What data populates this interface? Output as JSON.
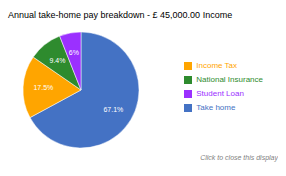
{
  "chart_data": {
    "type": "pie",
    "title": "Annual take-home pay breakdown - £ 45,000.00 Income",
    "categories": [
      "Take home",
      "Income Tax",
      "National Insurance",
      "Student Loan"
    ],
    "values": [
      67.1,
      17.5,
      9.4,
      6.0
    ],
    "value_labels": [
      "67.1%",
      "17.5%",
      "9.4%",
      "6%"
    ],
    "colors": [
      "#4472C4",
      "#FFA500",
      "#2E8B2E",
      "#9B30FF"
    ],
    "data_labels": true,
    "legend": "right",
    "annotations": [
      "Click to close this display"
    ]
  }
}
